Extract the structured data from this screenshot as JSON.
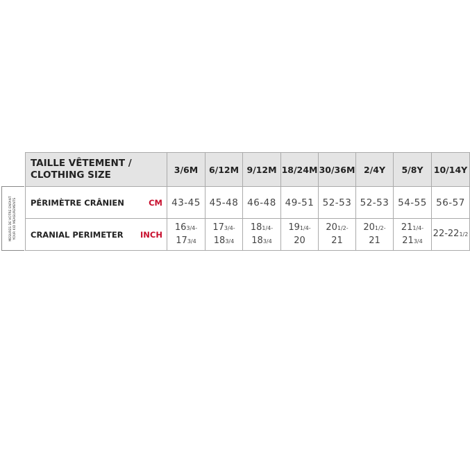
{
  "side_label": {
    "line1": "MESURES DE VOTRE ENFANT",
    "line2": "YOUR KID MEASUREMENTS"
  },
  "header": {
    "line1": "TAILLE VÊTEMENT /",
    "line2": "CLOTHING SIZE"
  },
  "sizes": [
    "3/6M",
    "6/12M",
    "9/12M",
    "18/24M",
    "30/36M",
    "2/4Y",
    "5/8Y",
    "10/14Y"
  ],
  "row_cm": {
    "label": "PÉRIMÈTRE CRÂNIEN",
    "unit": "CM",
    "values": [
      "43-45",
      "45-48",
      "46-48",
      "49-51",
      "52-53",
      "52-53",
      "54-55",
      "56-57"
    ]
  },
  "row_inch": {
    "label": "CRANIAL PERIMETER",
    "unit": "INCH",
    "values": [
      {
        "a": "16",
        "af": "3/4-",
        "b": "17",
        "bf": "3/4"
      },
      {
        "a": "17",
        "af": "3/4-",
        "b": "18",
        "bf": "3/4"
      },
      {
        "a": "18",
        "af": "1/4-",
        "b": "18",
        "bf": "3/4"
      },
      {
        "a": "19",
        "af": "1/4-",
        "b": "20",
        "bf": ""
      },
      {
        "a": "20",
        "af": "1/2-",
        "b": "21",
        "bf": ""
      },
      {
        "a": "20",
        "af": "1/2-",
        "b": "21",
        "bf": ""
      },
      {
        "a": "21",
        "af": "1/4-",
        "b": "21",
        "bf": "3/4"
      },
      {
        "a": "22-22",
        "af": "1/2",
        "b": "",
        "bf": ""
      }
    ]
  },
  "colors": {
    "unit": "#c8102e",
    "header_bg": "#e4e4e4"
  }
}
